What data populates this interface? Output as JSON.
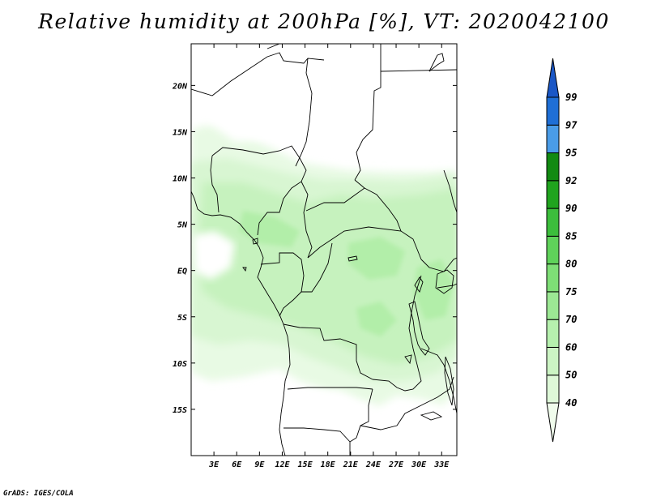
{
  "title": "Relative humidity at 200hPa [%], VT: 2020042100",
  "credit": "GrADS: IGES/COLA",
  "map": {
    "lon_range": [
      0,
      35
    ],
    "lat_range": [
      -20,
      24.5
    ],
    "lon_ticks": [
      "3E",
      "6E",
      "9E",
      "12E",
      "15E",
      "18E",
      "21E",
      "24E",
      "27E",
      "30E",
      "33E"
    ],
    "lat_ticks": [
      {
        "lat": 20,
        "label": "20N"
      },
      {
        "lat": 15,
        "label": "15N"
      },
      {
        "lat": 10,
        "label": "10N"
      },
      {
        "lat": 5,
        "label": "5N"
      },
      {
        "lat": 0,
        "label": "EQ"
      },
      {
        "lat": -5,
        "label": "5S"
      },
      {
        "lat": -10,
        "label": "10S"
      },
      {
        "lat": -15,
        "label": "15S"
      }
    ]
  },
  "colorbar": {
    "levels": [
      "40",
      "50",
      "60",
      "70",
      "75",
      "80",
      "85",
      "90",
      "92",
      "95",
      "97",
      "99"
    ],
    "colors": [
      "#f0fcec",
      "#def8d8",
      "#ccf4c4",
      "#b6f0ae",
      "#9ce894",
      "#7ede76",
      "#5fd25a",
      "#3cbe3c",
      "#20a41e",
      "#128a12",
      "#4a9ce8",
      "#1f6fd6",
      "#1a57c6"
    ]
  }
}
